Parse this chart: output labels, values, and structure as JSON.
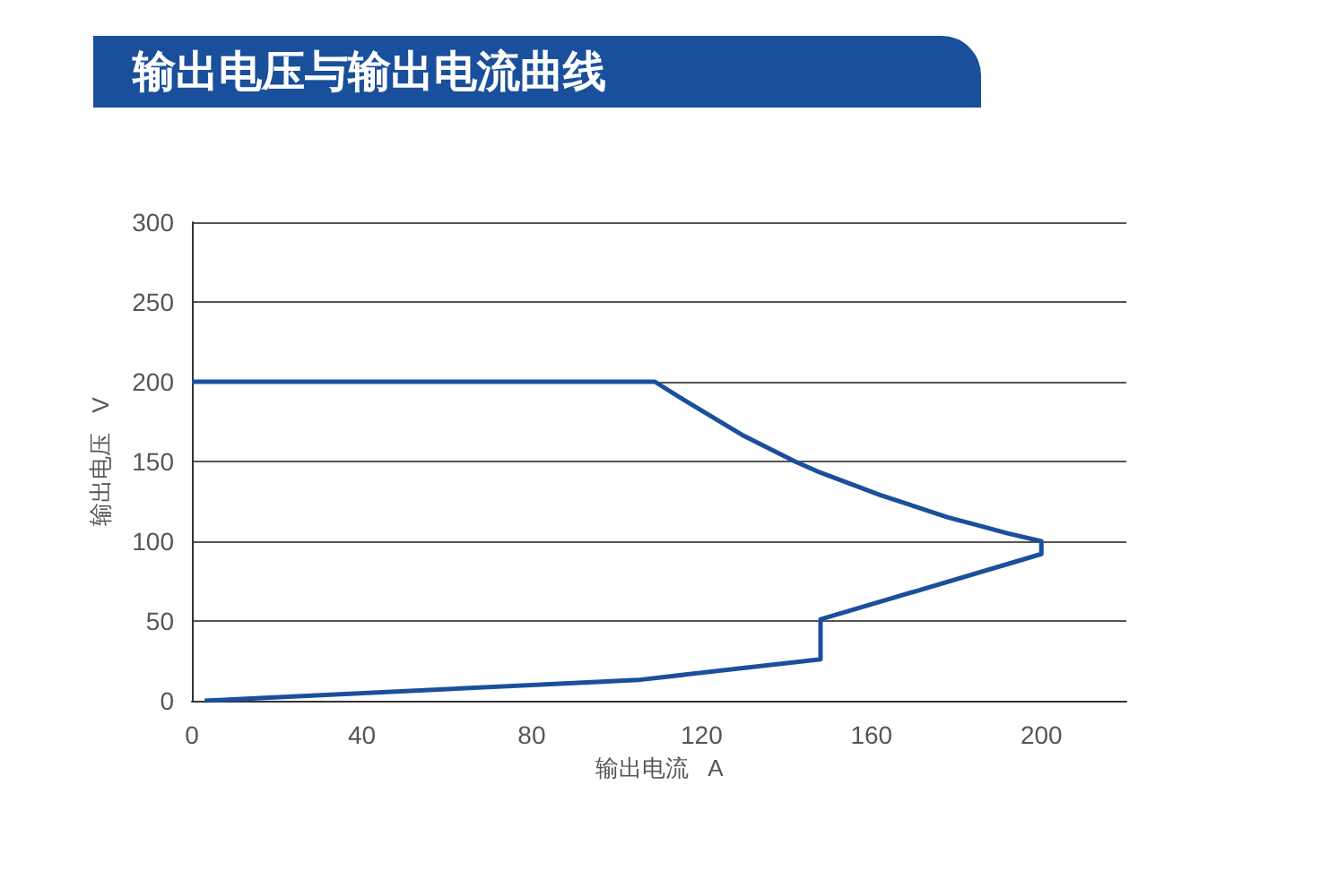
{
  "chart_data": {
    "type": "line",
    "title": "输出电压与输出电流曲线",
    "xlabel": "输出电流   A",
    "ylabel": "输出电压   V",
    "series": [
      {
        "color": "#1a4f9c",
        "x": [
          3,
          105,
          148,
          148,
          200,
          200,
          192,
          185,
          178,
          170,
          162,
          155,
          148,
          142,
          136,
          130,
          125,
          120,
          115,
          109,
          0
        ],
        "values": [
          0,
          13,
          26,
          51,
          92,
          100,
          105,
          110,
          115,
          122,
          129,
          136,
          143,
          150,
          158,
          166,
          174,
          182,
          190,
          200,
          200
        ]
      }
    ],
    "xlim": [
      0,
      220
    ],
    "xticks": [
      0,
      40,
      80,
      120,
      160,
      200
    ],
    "ylim": [
      0,
      300
    ],
    "yticks": [
      0,
      50,
      100,
      150,
      200,
      250,
      300
    ],
    "grid": "y",
    "marker": "none",
    "line_style": "solid"
  }
}
